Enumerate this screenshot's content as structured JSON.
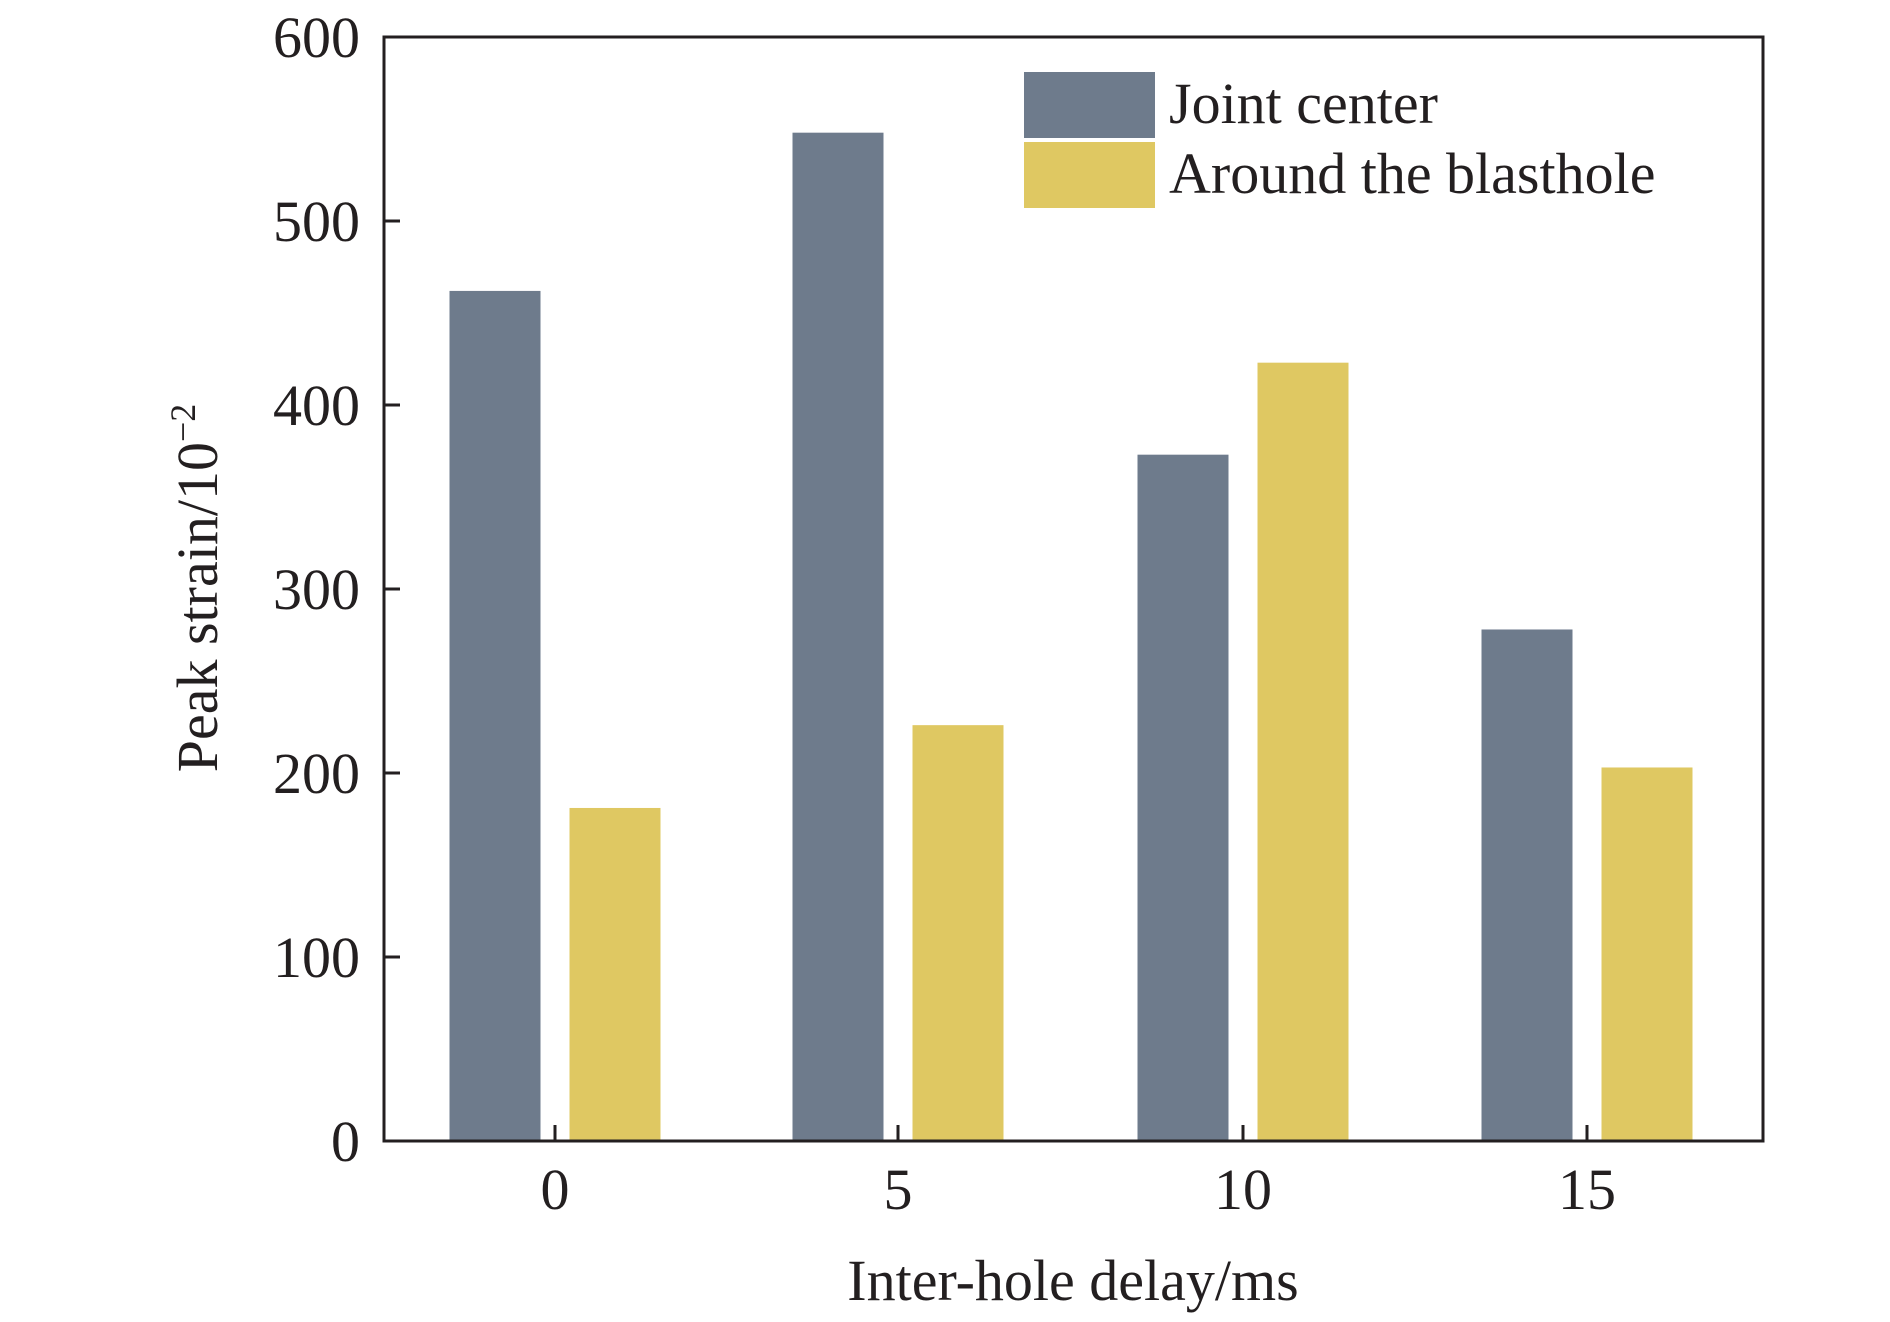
{
  "chart_data": {
    "type": "bar",
    "title": "",
    "xlabel": "Inter-hole delay/ms",
    "ylabel": "Peak strain/10",
    "ylabel_superscript": "−2",
    "categories": [
      "0",
      "5",
      "10",
      "15"
    ],
    "ylim": [
      0,
      600
    ],
    "yticks": [
      "0",
      "100",
      "200",
      "300",
      "400",
      "500",
      "600"
    ],
    "grid": false,
    "legend_position": "top-right",
    "series": [
      {
        "name": "Joint center",
        "color": "#6e7b8c",
        "values": [
          462,
          548,
          373,
          278
        ]
      },
      {
        "name": "Around the blasthole",
        "color": "#dfc862",
        "values": [
          181,
          226,
          423,
          203
        ]
      }
    ]
  }
}
